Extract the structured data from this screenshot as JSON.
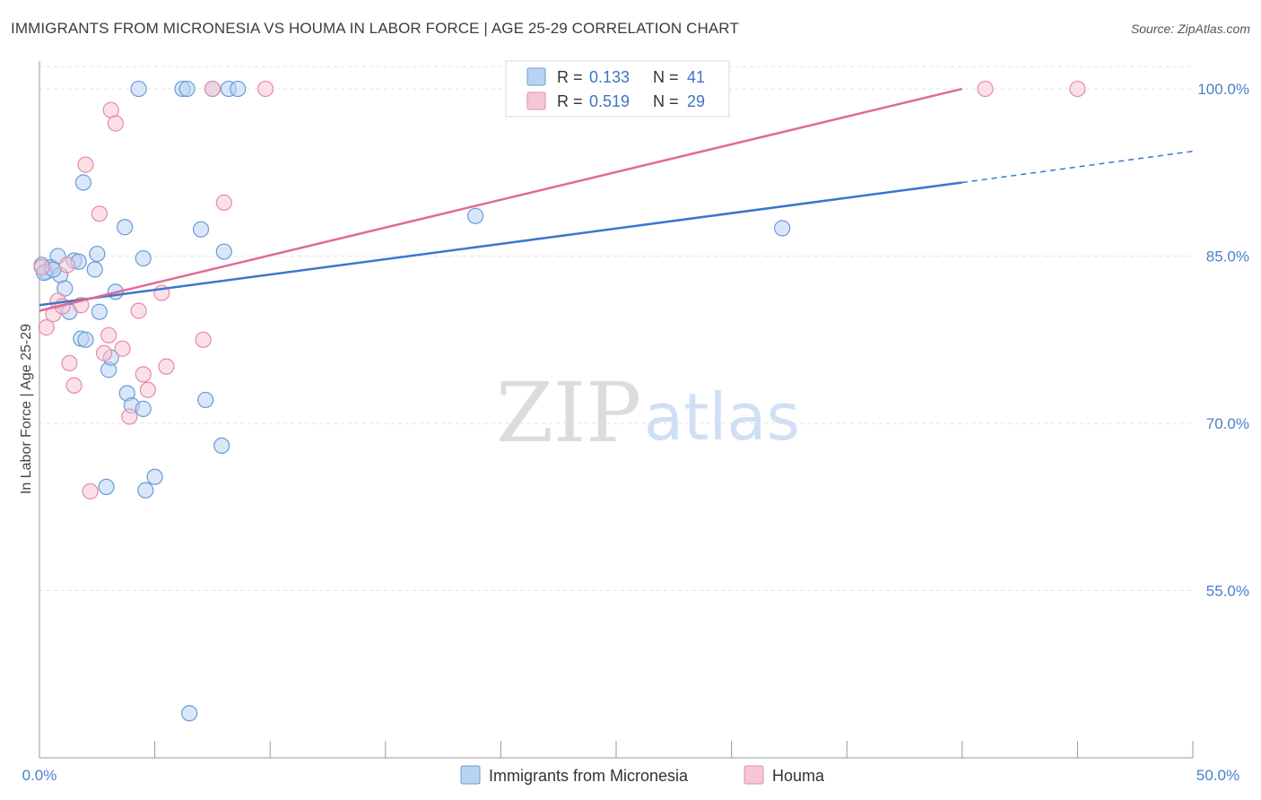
{
  "title": "IMMIGRANTS FROM MICRONESIA VS HOUMA IN LABOR FORCE | AGE 25-29 CORRELATION CHART",
  "source": "Source: ZipAtlas.com",
  "watermark": {
    "zip": "ZIP",
    "atlas": "atlas"
  },
  "colors": {
    "blue_fill": "#b9d3f3",
    "blue_stroke": "#6a9bd8",
    "blue_line": "#3a78cc",
    "pink_fill": "#f7c6d6",
    "pink_stroke": "#e68aa8",
    "pink_line": "#e06a94",
    "grid": "#e3e3e3",
    "tick_label": "#4a7fc8"
  },
  "legend": {
    "r_label": "R =",
    "n_label": "N =",
    "series1": {
      "r": "0.133",
      "n": "41"
    },
    "series2": {
      "r": "0.519",
      "n": "29"
    }
  },
  "chart_data": {
    "type": "scatter",
    "title": "IMMIGRANTS FROM MICRONESIA VS HOUMA IN LABOR FORCE | AGE 25-29 CORRELATION CHART",
    "xlabel": "",
    "ylabel": "In Labor Force | Age 25-29",
    "xlim": [
      0,
      50
    ],
    "ylim": [
      40,
      102.5
    ],
    "x_tick_labels": [
      "0.0%",
      "50.0%"
    ],
    "y_ticks": [
      55,
      70,
      85,
      100
    ],
    "y_tick_labels": [
      "55.0%",
      "70.0%",
      "85.0%",
      "100.0%"
    ],
    "grid": true,
    "series": [
      {
        "name": "Immigrants from Micronesia",
        "color": "#b9d3f3",
        "points": [
          [
            0.1,
            84.2
          ],
          [
            0.3,
            83.6
          ],
          [
            0.5,
            84.0
          ],
          [
            0.8,
            85.0
          ],
          [
            0.9,
            83.3
          ],
          [
            1.1,
            82.1
          ],
          [
            1.3,
            80.0
          ],
          [
            1.5,
            84.6
          ],
          [
            1.7,
            84.5
          ],
          [
            1.8,
            77.6
          ],
          [
            1.9,
            91.6
          ],
          [
            2.0,
            77.5
          ],
          [
            2.4,
            83.8
          ],
          [
            2.5,
            85.2
          ],
          [
            2.6,
            80.0
          ],
          [
            3.0,
            74.8
          ],
          [
            3.1,
            75.9
          ],
          [
            3.3,
            81.8
          ],
          [
            3.7,
            87.6
          ],
          [
            3.8,
            72.7
          ],
          [
            4.0,
            71.6
          ],
          [
            4.3,
            100.0
          ],
          [
            4.5,
            84.8
          ],
          [
            4.5,
            71.3
          ],
          [
            4.6,
            64.0
          ],
          [
            5.0,
            65.2
          ],
          [
            6.2,
            100.0
          ],
          [
            6.4,
            100.0
          ],
          [
            7.0,
            87.4
          ],
          [
            7.2,
            72.1
          ],
          [
            7.5,
            100.0
          ],
          [
            7.9,
            68.0
          ],
          [
            8.0,
            85.4
          ],
          [
            8.2,
            100.0
          ],
          [
            8.6,
            100.0
          ],
          [
            2.9,
            64.3
          ],
          [
            6.5,
            44.0
          ],
          [
            18.9,
            88.6
          ],
          [
            32.2,
            87.5
          ],
          [
            0.2,
            83.5
          ],
          [
            0.6,
            83.8
          ]
        ]
      },
      {
        "name": "Houma",
        "color": "#f7c6d6",
        "points": [
          [
            0.1,
            84.0
          ],
          [
            0.3,
            78.6
          ],
          [
            0.6,
            79.8
          ],
          [
            0.8,
            81.0
          ],
          [
            1.0,
            80.5
          ],
          [
            1.2,
            84.2
          ],
          [
            1.3,
            75.4
          ],
          [
            1.5,
            73.4
          ],
          [
            1.8,
            80.6
          ],
          [
            2.0,
            93.2
          ],
          [
            2.2,
            63.9
          ],
          [
            2.6,
            88.8
          ],
          [
            2.8,
            76.3
          ],
          [
            3.0,
            77.9
          ],
          [
            3.1,
            98.1
          ],
          [
            3.3,
            96.9
          ],
          [
            3.6,
            76.7
          ],
          [
            3.9,
            70.6
          ],
          [
            4.3,
            80.1
          ],
          [
            4.5,
            74.4
          ],
          [
            4.7,
            73.0
          ],
          [
            5.3,
            81.7
          ],
          [
            5.5,
            75.1
          ],
          [
            7.1,
            77.5
          ],
          [
            7.5,
            100.0
          ],
          [
            8.0,
            89.8
          ],
          [
            9.8,
            100.0
          ],
          [
            41.0,
            100.0
          ],
          [
            45.0,
            100.0
          ]
        ]
      }
    ],
    "trend_lines": [
      {
        "series": "Immigrants from Micronesia",
        "x": [
          0,
          40
        ],
        "y": [
          80.6,
          91.6
        ],
        "dashed_extension_to_x": 50,
        "dashed_extension_y": 94.4
      },
      {
        "series": "Houma",
        "x": [
          0,
          40
        ],
        "y": [
          80.1,
          100.0
        ]
      }
    ]
  }
}
